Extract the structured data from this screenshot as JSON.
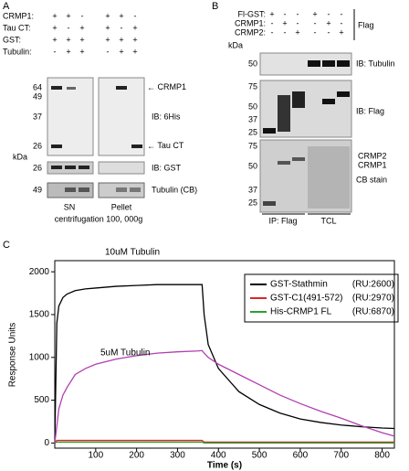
{
  "panel_letters": [
    "A",
    "B",
    "C"
  ],
  "panel_a": {
    "rows": [
      {
        "label": "CRMP1:",
        "signs": [
          "+",
          "+",
          "-",
          "+",
          "+",
          "-"
        ]
      },
      {
        "label": "Tau CT:",
        "signs": [
          "+",
          "-",
          "+",
          "+",
          "-",
          "+"
        ]
      },
      {
        "label": "GST:",
        "signs": [
          "+",
          "+",
          "+",
          "+",
          "+",
          "+"
        ]
      },
      {
        "label": "Tubulin:",
        "signs": [
          "-",
          "+",
          "+",
          "-",
          "+",
          "+"
        ]
      }
    ],
    "markers_his": [
      64,
      49,
      37,
      26
    ],
    "kda": "kDa",
    "markers_gst": [
      26
    ],
    "markers_tub": [
      49
    ],
    "crmp1": "CRMP1",
    "ib_his": "IB: 6His",
    "tau_ct": "Tau CT",
    "ib_gst": "IB: GST",
    "tubulin_cb": "Tubulin (CB)",
    "sn": "SN",
    "pellet": "Pellet",
    "centrifugation": "centrifugation 100, 000g"
  },
  "panel_b": {
    "rows": [
      {
        "label": "Fl-GST:",
        "signs": [
          "+",
          "-",
          "-",
          "+",
          "-",
          "-"
        ]
      },
      {
        "label": "CRMP1:",
        "signs": [
          "-",
          "+",
          "-",
          "-",
          "+",
          "-"
        ]
      },
      {
        "label": "CRMP2:",
        "signs": [
          "-",
          "-",
          "+",
          "-",
          "-",
          "+"
        ]
      }
    ],
    "flag": "Flag",
    "kda": "kDa",
    "markers_tub": [
      50
    ],
    "markers_flag": [
      75,
      50,
      37,
      25
    ],
    "markers_cb": [
      75,
      50,
      37,
      25
    ],
    "ib_tubulin": "IB: Tubulin",
    "ib_flag": "IB: Flag",
    "crmp2": "CRMP2",
    "crmp1": "CRMP1",
    "cb_stain": "CB stain",
    "ip_flag": "IP: Flag",
    "tcl": "TCL"
  },
  "chart_data": {
    "type": "line",
    "xlabel": "Time (s)",
    "ylabel": "Response Units",
    "annotations": [
      "10uM Tubulin",
      "5uM Tubulin"
    ],
    "x": [
      0,
      5,
      10,
      20,
      30,
      50,
      75,
      100,
      150,
      200,
      250,
      300,
      350,
      360,
      365,
      375,
      400,
      450,
      500,
      550,
      600,
      650,
      700,
      750,
      800,
      830
    ],
    "series": [
      {
        "name": "GST-Stathmin",
        "ru": "(RU:2600)",
        "color": "#000000",
        "values": [
          0,
          1400,
          1600,
          1700,
          1740,
          1780,
          1800,
          1810,
          1830,
          1840,
          1850,
          1850,
          1850,
          1850,
          1500,
          1150,
          870,
          600,
          450,
          350,
          280,
          240,
          210,
          190,
          175,
          170
        ]
      },
      {
        "name": "GST-C1(491-572)",
        "ru": "(RU:2970)",
        "color": "#d62728",
        "values": [
          0,
          30,
          30,
          30,
          30,
          30,
          30,
          30,
          30,
          30,
          30,
          30,
          30,
          30,
          10,
          10,
          10,
          10,
          10,
          10,
          10,
          10,
          10,
          10,
          10,
          10
        ]
      },
      {
        "name": "His-CRMP1 FL",
        "ru": "(RU:6870)",
        "color": "#2ca02c",
        "values": [
          0,
          10,
          10,
          10,
          10,
          10,
          10,
          10,
          10,
          10,
          10,
          10,
          10,
          10,
          0,
          0,
          0,
          0,
          0,
          0,
          0,
          0,
          0,
          0,
          0,
          0
        ]
      },
      {
        "color": "#b03fb0",
        "values": [
          0,
          200,
          400,
          560,
          650,
          800,
          870,
          920,
          980,
          1020,
          1050,
          1065,
          1075,
          1080,
          1050,
          1000,
          920,
          800,
          680,
          560,
          460,
          370,
          290,
          200,
          120,
          80
        ]
      }
    ],
    "xlim": [
      0,
      830
    ],
    "ylim": [
      -60,
      2130
    ],
    "xticks": [
      100,
      200,
      300,
      400,
      500,
      600,
      700,
      800
    ],
    "yticks": [
      0,
      500,
      1000,
      1500,
      2000
    ]
  }
}
